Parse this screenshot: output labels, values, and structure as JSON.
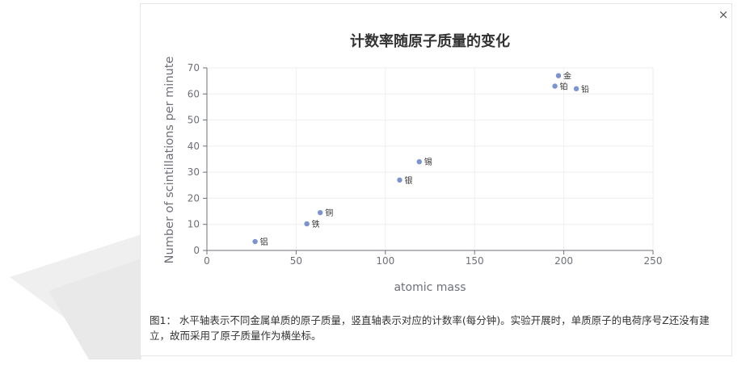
{
  "dialog": {
    "close_label": "×",
    "caption": "图1： 水平轴表示不同金属单质的原子质量，竖直轴表示对应的计数率(每分钟)。实验开展时，单质原子的电荷序号Z还没有建立，故而采用了原子质量作为横坐标。"
  },
  "colors": {
    "point": "#7b93cf",
    "axis": "#6e7079",
    "grid": "#eeeeee",
    "text": "#333333"
  },
  "chart_data": {
    "type": "scatter",
    "title": "计数率随原子质量的变化",
    "xlabel": "atomic mass",
    "ylabel": "Number of scintillations per minute",
    "xlim": [
      0,
      250
    ],
    "ylim": [
      0,
      70
    ],
    "xticks": [
      0,
      50,
      100,
      150,
      200,
      250
    ],
    "yticks": [
      0,
      10,
      20,
      30,
      40,
      50,
      60,
      70
    ],
    "grid": true,
    "points": [
      {
        "label": "铝",
        "x": 27,
        "y": 3.4
      },
      {
        "label": "铁",
        "x": 56,
        "y": 10.2
      },
      {
        "label": "铜",
        "x": 63.5,
        "y": 14.5
      },
      {
        "label": "银",
        "x": 108,
        "y": 27
      },
      {
        "label": "锡",
        "x": 119,
        "y": 34
      },
      {
        "label": "铂",
        "x": 195,
        "y": 63
      },
      {
        "label": "金",
        "x": 197,
        "y": 67
      },
      {
        "label": "铅",
        "x": 207,
        "y": 62
      }
    ]
  }
}
